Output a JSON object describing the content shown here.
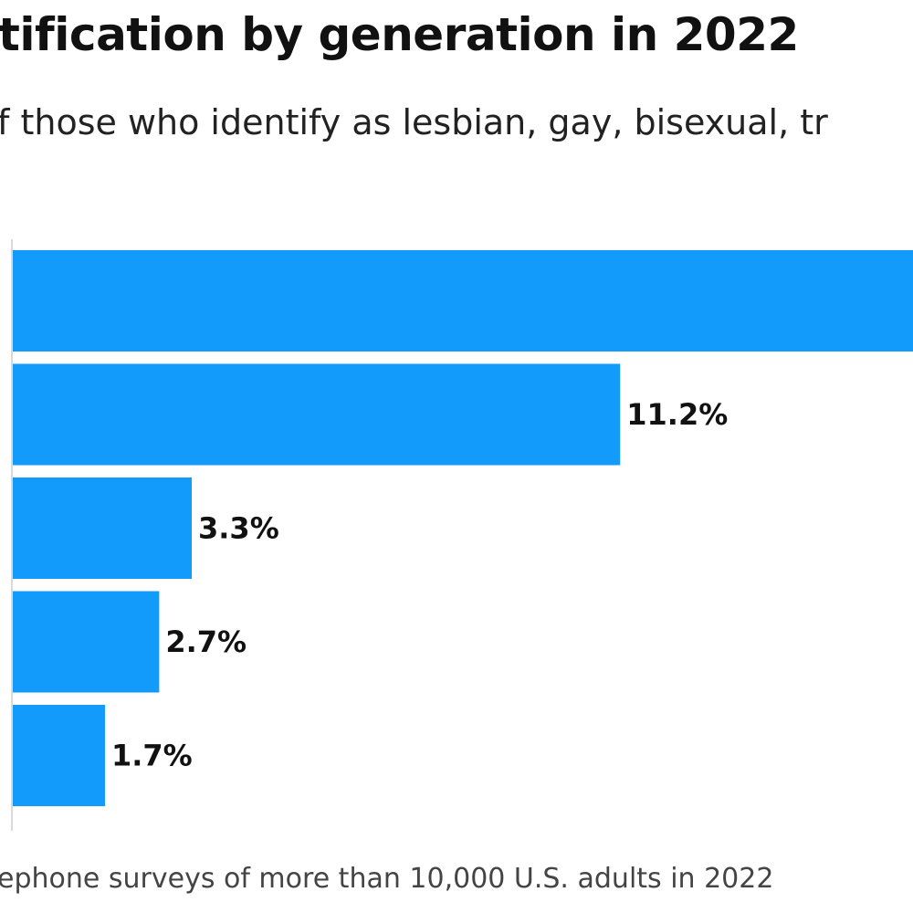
{
  "title": "tification by generation in 2022",
  "subtitle": "f those who identify as lesbian, gay, bisexual, tr",
  "footnote": "ephone surveys of more than 10,000 U.S. adults in 2022",
  "colors": {
    "bar": "#139bfc",
    "axis": "#d9d9d9",
    "text": "#111111"
  },
  "chart_data": {
    "type": "bar",
    "orientation": "horizontal",
    "values": [
      null,
      11.2,
      3.3,
      2.7,
      1.7
    ],
    "labels": [
      "",
      "11.2%",
      "3.3%",
      "2.7%",
      "1.7%"
    ],
    "xlim": [
      0,
      16.6
    ],
    "grid": false
  }
}
